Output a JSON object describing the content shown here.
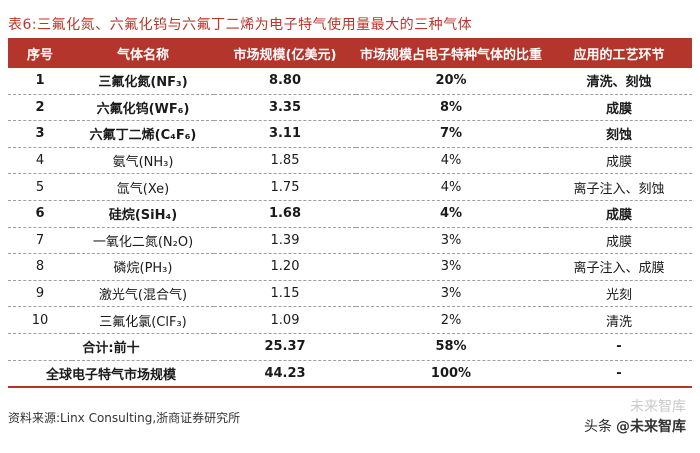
{
  "title": "表6:三氟化氮、六氟化钨与六氟丁二烯为电子特气使用量最大的三种气体",
  "table": {
    "headers": [
      "序号",
      "气体名称",
      "市场规模(亿美元)",
      "市场规模占电子特种气体的比重",
      "应用的工艺环节"
    ],
    "rows": [
      {
        "no": "1",
        "name": "三氟化氮(NF₃)",
        "size": "8.80",
        "share": "20%",
        "process": "清洗、刻蚀",
        "bold": true
      },
      {
        "no": "2",
        "name": "六氟化钨(WF₆)",
        "size": "3.35",
        "share": "8%",
        "process": "成膜",
        "bold": true
      },
      {
        "no": "3",
        "name": "六氟丁二烯(C₄F₆)",
        "size": "3.11",
        "share": "7%",
        "process": "刻蚀",
        "bold": true
      },
      {
        "no": "4",
        "name": "氨气(NH₃)",
        "size": "1.85",
        "share": "4%",
        "process": "成膜",
        "bold": false
      },
      {
        "no": "5",
        "name": "氙气(Xe)",
        "size": "1.75",
        "share": "4%",
        "process": "离子注入、刻蚀",
        "bold": false
      },
      {
        "no": "6",
        "name": "硅烷(SiH₄)",
        "size": "1.68",
        "share": "4%",
        "process": "成膜",
        "bold": true
      },
      {
        "no": "7",
        "name": "一氧化二氮(N₂O)",
        "size": "1.39",
        "share": "3%",
        "process": "成膜",
        "bold": false
      },
      {
        "no": "8",
        "name": "磷烷(PH₃)",
        "size": "1.20",
        "share": "3%",
        "process": "离子注入、成膜",
        "bold": false
      },
      {
        "no": "9",
        "name": "激光气(混合气)",
        "size": "1.15",
        "share": "3%",
        "process": "光刻",
        "bold": false
      },
      {
        "no": "10",
        "name": "三氟化氯(ClF₃)",
        "size": "1.09",
        "share": "2%",
        "process": "清洗",
        "bold": false
      }
    ],
    "sum_row": {
      "label": "合计:前十",
      "size": "25.37",
      "share": "58%",
      "process": "-"
    },
    "total_row": {
      "label": "全球电子特气市场规模",
      "size": "44.23",
      "share": "100%",
      "process": "-"
    }
  },
  "source": "资料来源:Linx Consulting,浙商证券研究所",
  "watermark": {
    "prefix": "头条",
    "handle": "@未来智库",
    "brand_faint": "未来智库"
  }
}
